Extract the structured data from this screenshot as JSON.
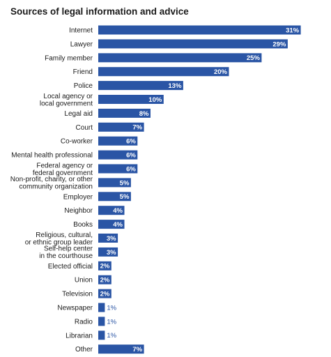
{
  "chart_data": {
    "type": "bar",
    "orientation": "horizontal",
    "title": "Sources of legal information and advice",
    "xlabel": "",
    "ylabel": "",
    "unit": "%",
    "xlim": [
      0,
      32
    ],
    "grid": false,
    "bar_color": "#2a55a5",
    "categories": [
      [
        "Internet"
      ],
      [
        "Lawyer"
      ],
      [
        "Family member"
      ],
      [
        "Friend"
      ],
      [
        "Police"
      ],
      [
        "Local agency or",
        "local government"
      ],
      [
        "Legal aid"
      ],
      [
        "Court"
      ],
      [
        "Co-worker"
      ],
      [
        "Mental health professional"
      ],
      [
        "Federal agency or",
        "federal government"
      ],
      [
        "Non-profit, charity, or other",
        "community organization"
      ],
      [
        "Employer"
      ],
      [
        "Neighbor"
      ],
      [
        "Books"
      ],
      [
        "Religious, cultural,",
        "or ethnic group leader"
      ],
      [
        "Self-help center",
        "in the courthouse"
      ],
      [
        "Elected official"
      ],
      [
        "Union"
      ],
      [
        "Television"
      ],
      [
        "Newspaper"
      ],
      [
        "Radio"
      ],
      [
        "Librarian"
      ],
      [
        "Other"
      ]
    ],
    "values": [
      31,
      29,
      25,
      20,
      13,
      10,
      8,
      7,
      6,
      6,
      6,
      5,
      5,
      4,
      4,
      3,
      3,
      2,
      2,
      2,
      1,
      1,
      1,
      7
    ],
    "value_labels": [
      "31%",
      "29%",
      "25%",
      "20%",
      "13%",
      "10%",
      "8%",
      "7%",
      "6%",
      "6%",
      "6%",
      "5%",
      "5%",
      "4%",
      "4%",
      "3%",
      "3%",
      "2%",
      "2%",
      "2%",
      "1%",
      "1%",
      "1%",
      "7%"
    ]
  }
}
